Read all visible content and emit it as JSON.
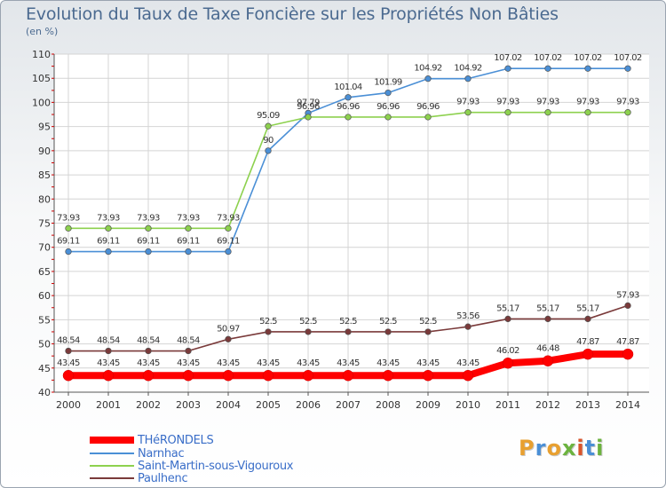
{
  "page": {
    "title": "Evolution du Taux de Taxe Foncière sur les Propriétés Non Bâties",
    "subtitle": "(en %)",
    "logo_text": "Proxiti",
    "logo_colors": [
      "#e8a030",
      "#4a8fd6",
      "#e8a030",
      "#6cb33f",
      "#d9542b",
      "#4a8fd6",
      "#6cb33f"
    ]
  },
  "chart_data": {
    "type": "line",
    "x": [
      "2000",
      "2001",
      "2002",
      "2003",
      "2004",
      "2005",
      "2006",
      "2007",
      "2008",
      "2009",
      "2010",
      "2011",
      "2012",
      "2013",
      "2014"
    ],
    "ylim": [
      40,
      110
    ],
    "yticks": [
      "40",
      "45",
      "50",
      "55",
      "60",
      "65",
      "70",
      "75",
      "80",
      "85",
      "90",
      "95",
      "100",
      "105",
      "110"
    ],
    "grid": true,
    "legend_position": "bottom-left",
    "series": [
      {
        "name": "THéRONDELS",
        "color": "#ff0000",
        "values": [
          43.45,
          43.45,
          43.45,
          43.45,
          43.45,
          43.45,
          43.45,
          43.45,
          43.45,
          43.45,
          43.45,
          46.02,
          46.48,
          47.87,
          47.87
        ],
        "labels": [
          "43.45",
          "43.45",
          "43.45",
          "43.45",
          "43.45",
          "43.45",
          "43.45",
          "43.45",
          "43.45",
          "43.45",
          "43.45",
          "46.02",
          "46.48",
          "47.87",
          "47.87"
        ]
      },
      {
        "name": "Narnhac",
        "color": "#4a8fd6",
        "values": [
          69.11,
          69.11,
          69.11,
          69.11,
          69.11,
          90,
          97.79,
          101.04,
          101.99,
          104.92,
          104.92,
          107.02,
          107.02,
          107.02,
          107.02
        ],
        "labels": [
          "69.11",
          "69.11",
          "69.11",
          "69.11",
          "69.11",
          "90",
          "97.79",
          "101.04",
          "101.99",
          "104.92",
          "104.92",
          "107.02",
          "107.02",
          "107.02",
          "107.02"
        ]
      },
      {
        "name": "Saint-Martin-sous-Vigouroux",
        "color": "#8dd14e",
        "values": [
          73.93,
          73.93,
          73.93,
          73.93,
          73.93,
          95.09,
          96.96,
          96.96,
          96.96,
          96.96,
          97.93,
          97.93,
          97.93,
          97.93,
          97.93
        ],
        "labels": [
          "73.93",
          "73.93",
          "73.93",
          "73.93",
          "73.93",
          "95.09",
          "96.96",
          "96.96",
          "96.96",
          "96.96",
          "97.93",
          "97.93",
          "97.93",
          "97.93",
          "97.93"
        ]
      },
      {
        "name": "Paulhenc",
        "color": "#7a3a3a",
        "values": [
          48.54,
          48.54,
          48.54,
          48.54,
          50.97,
          52.5,
          52.5,
          52.5,
          52.5,
          52.5,
          53.56,
          55.17,
          55.17,
          55.17,
          57.93
        ],
        "labels": [
          "48.54",
          "48.54",
          "48.54",
          "48.54",
          "50.97",
          "52.5",
          "52.5",
          "52.5",
          "52.5",
          "52.5",
          "53.56",
          "55.17",
          "55.17",
          "55.17",
          "57.93"
        ]
      }
    ]
  }
}
